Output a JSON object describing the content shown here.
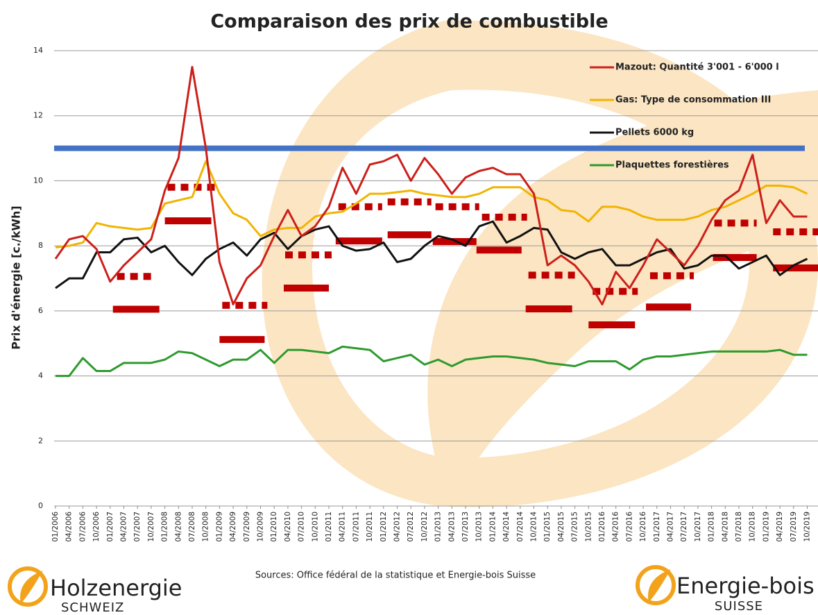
{
  "chart_data": {
    "type": "line",
    "title": "Comparaison des prix de combustible",
    "y_label": "Prix d'énergie [c./kWh]",
    "source": "Sources: Office fédéral de la statistique et Energie-bois Suisse",
    "logos": [
      {
        "name": "Holzenergie",
        "sub": "SCHWEIZ"
      },
      {
        "name": "Energie-bois",
        "sub": "SUISSE"
      }
    ],
    "categories": [
      "01/2006",
      "04/2006",
      "07/2006",
      "10/2006",
      "01/2007",
      "04/2007",
      "07/2007",
      "10/2007",
      "01/2008",
      "04/2008",
      "07/2008",
      "10/2008",
      "01/2009",
      "04/2009",
      "07/2009",
      "10/2009",
      "01/2010",
      "04/2010",
      "07/2010",
      "10/2010",
      "01/2011",
      "04/2011",
      "07/2011",
      "10/2011",
      "01/2012",
      "04/2012",
      "07/2012",
      "10/2012",
      "01/2013",
      "04/2013",
      "07/2013",
      "10/2013",
      "01/2014",
      "04/2014",
      "07/2014",
      "10/2014",
      "01/2015",
      "04/2015",
      "07/2015",
      "10/2015",
      "01/2016",
      "04/2016",
      "07/2016",
      "10/2016",
      "01/2017",
      "04/2017",
      "07/2017",
      "10/2017",
      "01/2018",
      "04/2018",
      "07/2018",
      "10/2018",
      "01/2019",
      "04/2019",
      "07/2019",
      "10/2019"
    ],
    "ylim": [
      0,
      14
    ],
    "yticks": [
      0,
      2,
      4,
      6,
      8,
      10,
      12,
      14
    ],
    "grid": true,
    "series": [
      {
        "name": "Mazout: Quantité 3'001 - 6'000 l",
        "color": "#cc1f1a",
        "values": [
          7.6,
          8.2,
          8.3,
          7.9,
          6.9,
          7.4,
          7.8,
          8.2,
          9.7,
          10.7,
          13.5,
          11.0,
          7.5,
          6.2,
          7.0,
          7.4,
          8.3,
          9.1,
          8.3,
          8.6,
          9.2,
          10.4,
          9.6,
          10.5,
          10.6,
          10.8,
          10.0,
          10.7,
          10.2,
          9.6,
          10.1,
          10.3,
          10.4,
          10.2,
          10.2,
          9.6,
          7.4,
          7.7,
          7.4,
          6.9,
          6.2,
          7.2,
          6.7,
          7.4,
          8.2,
          7.8,
          7.4,
          8.0,
          8.8,
          9.4,
          9.7,
          10.8,
          8.7,
          9.4,
          8.9,
          8.9
        ]
      },
      {
        "name": "Gas: Type de consommation III",
        "color": "#f0b400",
        "values": [
          7.95,
          8.0,
          8.1,
          8.7,
          8.6,
          8.55,
          8.5,
          8.55,
          9.3,
          9.4,
          9.5,
          10.6,
          9.6,
          9.0,
          8.8,
          8.3,
          8.5,
          8.55,
          8.55,
          8.9,
          9.0,
          9.05,
          9.3,
          9.6,
          9.6,
          9.65,
          9.7,
          9.6,
          9.55,
          9.5,
          9.5,
          9.6,
          9.8,
          9.8,
          9.8,
          9.5,
          9.4,
          9.1,
          9.05,
          8.75,
          9.2,
          9.2,
          9.1,
          8.9,
          8.8,
          8.8,
          8.8,
          8.9,
          9.1,
          9.2,
          9.4,
          9.6,
          9.85,
          9.85,
          9.8,
          9.6
        ]
      },
      {
        "name": "Pellets 6000 kg",
        "color": "#111111",
        "values": [
          6.7,
          7.0,
          7.0,
          7.8,
          7.8,
          8.2,
          8.25,
          7.8,
          8.0,
          7.5,
          7.1,
          7.6,
          7.9,
          8.1,
          7.7,
          8.2,
          8.4,
          7.9,
          8.3,
          8.5,
          8.6,
          8.0,
          7.85,
          7.9,
          8.1,
          7.5,
          7.6,
          8.0,
          8.3,
          8.2,
          8.0,
          8.6,
          8.75,
          8.1,
          8.3,
          8.55,
          8.5,
          7.8,
          7.6,
          7.8,
          7.9,
          7.4,
          7.4,
          7.6,
          7.8,
          7.9,
          7.3,
          7.4,
          7.7,
          7.7,
          7.3,
          7.5,
          7.7,
          7.1,
          7.4,
          7.6
        ]
      },
      {
        "name": "Plaquettes forestières",
        "color": "#2e9a2e",
        "values": [
          4.0,
          4.0,
          4.55,
          4.15,
          4.15,
          4.4,
          4.4,
          4.4,
          4.5,
          4.75,
          4.7,
          4.5,
          4.3,
          4.5,
          4.5,
          4.8,
          4.4,
          4.8,
          4.8,
          4.75,
          4.7,
          4.9,
          4.85,
          4.8,
          4.45,
          4.55,
          4.65,
          4.35,
          4.5,
          4.3,
          4.5,
          4.55,
          4.6,
          4.6,
          4.55,
          4.5,
          4.4,
          4.35,
          4.3,
          4.45,
          4.45,
          4.45,
          4.2,
          4.5,
          4.6,
          4.6,
          4.65,
          4.7,
          4.75,
          4.75,
          4.75,
          4.75,
          4.75,
          4.8,
          4.65,
          4.65
        ]
      }
    ],
    "reference_line": {
      "value": 11,
      "color": "#4472c4"
    },
    "segment_color": "#c00000",
    "solid_segments": [
      {
        "x": [
          4.2,
          7.6
        ],
        "value": 6.05
      },
      {
        "x": [
          8.0,
          11.4
        ],
        "value": 8.77
      },
      {
        "x": [
          12.0,
          15.3
        ],
        "value": 5.12
      },
      {
        "x": [
          16.7,
          20.0
        ],
        "value": 6.7
      },
      {
        "x": [
          20.5,
          23.9
        ],
        "value": 8.15
      },
      {
        "x": [
          24.3,
          27.5
        ],
        "value": 8.34
      },
      {
        "x": [
          27.6,
          30.8
        ],
        "value": 8.13
      },
      {
        "x": [
          30.8,
          34.1
        ],
        "value": 7.87
      },
      {
        "x": [
          34.4,
          37.8
        ],
        "value": 6.06
      },
      {
        "x": [
          39.0,
          42.4
        ],
        "value": 5.57
      },
      {
        "x": [
          43.2,
          46.5
        ],
        "value": 6.12
      },
      {
        "x": [
          48.1,
          51.3
        ],
        "value": 7.64
      },
      {
        "x": [
          52.5,
          55.8
        ],
        "value": 7.32
      }
    ],
    "dashed_segments": [
      {
        "x": [
          4.5,
          7.0
        ],
        "value": 7.06
      },
      {
        "x": [
          8.2,
          11.7
        ],
        "value": 9.8
      },
      {
        "x": [
          12.2,
          15.5
        ],
        "value": 6.17
      },
      {
        "x": [
          16.8,
          20.2
        ],
        "value": 7.72
      },
      {
        "x": [
          20.7,
          23.9
        ],
        "value": 9.2
      },
      {
        "x": [
          24.3,
          27.5
        ],
        "value": 9.35
      },
      {
        "x": [
          27.8,
          31.0
        ],
        "value": 9.2
      },
      {
        "x": [
          31.2,
          34.5
        ],
        "value": 8.88
      },
      {
        "x": [
          34.6,
          38.0
        ],
        "value": 7.1
      },
      {
        "x": [
          39.3,
          42.6
        ],
        "value": 6.6
      },
      {
        "x": [
          43.5,
          46.7
        ],
        "value": 7.08
      },
      {
        "x": [
          48.2,
          51.3
        ],
        "value": 8.7
      },
      {
        "x": [
          52.5,
          55.8
        ],
        "value": 8.43
      }
    ]
  }
}
